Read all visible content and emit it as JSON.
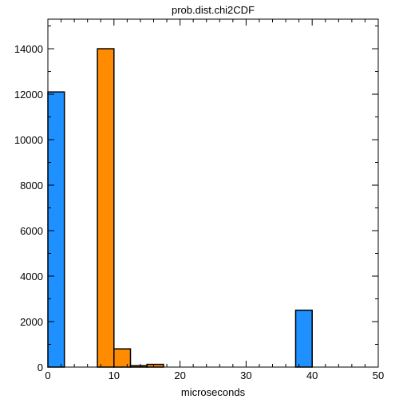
{
  "chart_data": {
    "type": "bar",
    "title": "prob.dist.chi2CDF",
    "xlabel": "microseconds",
    "ylabel": "",
    "xlim": [
      0,
      50
    ],
    "ylim": [
      0,
      15300
    ],
    "xticks": [
      0,
      10,
      20,
      30,
      40,
      50
    ],
    "yticks": [
      0,
      2000,
      4000,
      6000,
      8000,
      10000,
      12000,
      14000
    ],
    "grid": false,
    "legend": "none",
    "series": [
      {
        "color": "#1e90ff",
        "bars": [
          {
            "x0": 0,
            "x1": 2.5,
            "value": 12100
          },
          {
            "x0": 37.5,
            "x1": 40,
            "value": 2500
          }
        ]
      },
      {
        "color": "#ff8c00",
        "bars": [
          {
            "x0": 7.5,
            "x1": 10,
            "value": 14000
          },
          {
            "x0": 10,
            "x1": 12.5,
            "value": 800
          },
          {
            "x0": 12.5,
            "x1": 15,
            "value": 60
          },
          {
            "x0": 15,
            "x1": 17.5,
            "value": 120
          }
        ]
      }
    ]
  }
}
